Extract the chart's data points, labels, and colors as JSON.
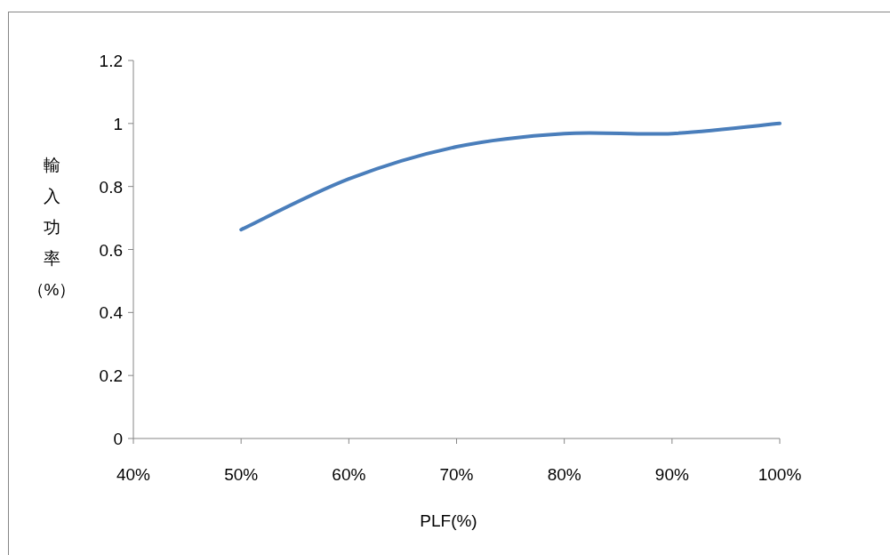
{
  "chart_data": {
    "type": "line",
    "xlabel": "PLF(%)",
    "ylabel": "輸入功率（%）",
    "x": [
      50,
      60,
      70,
      80,
      90,
      100
    ],
    "series": [
      {
        "color": "#4a7ebb",
        "values": [
          0.663,
          0.824,
          0.926,
          0.968,
          0.968,
          1.0
        ]
      }
    ],
    "xlim": [
      40,
      100
    ],
    "xticks": [
      {
        "value": 40,
        "label": "40%"
      },
      {
        "value": 50,
        "label": "50%"
      },
      {
        "value": 60,
        "label": "60%"
      },
      {
        "value": 70,
        "label": "70%"
      },
      {
        "value": 80,
        "label": "80%"
      },
      {
        "value": 90,
        "label": "90%"
      },
      {
        "value": 100,
        "label": "100%"
      }
    ],
    "ylim": [
      0,
      1.2
    ],
    "yticks": [
      0,
      0.2,
      0.4,
      0.6,
      0.8,
      1,
      1.2
    ],
    "grid": false,
    "marker": "none",
    "line_style": "solid"
  }
}
